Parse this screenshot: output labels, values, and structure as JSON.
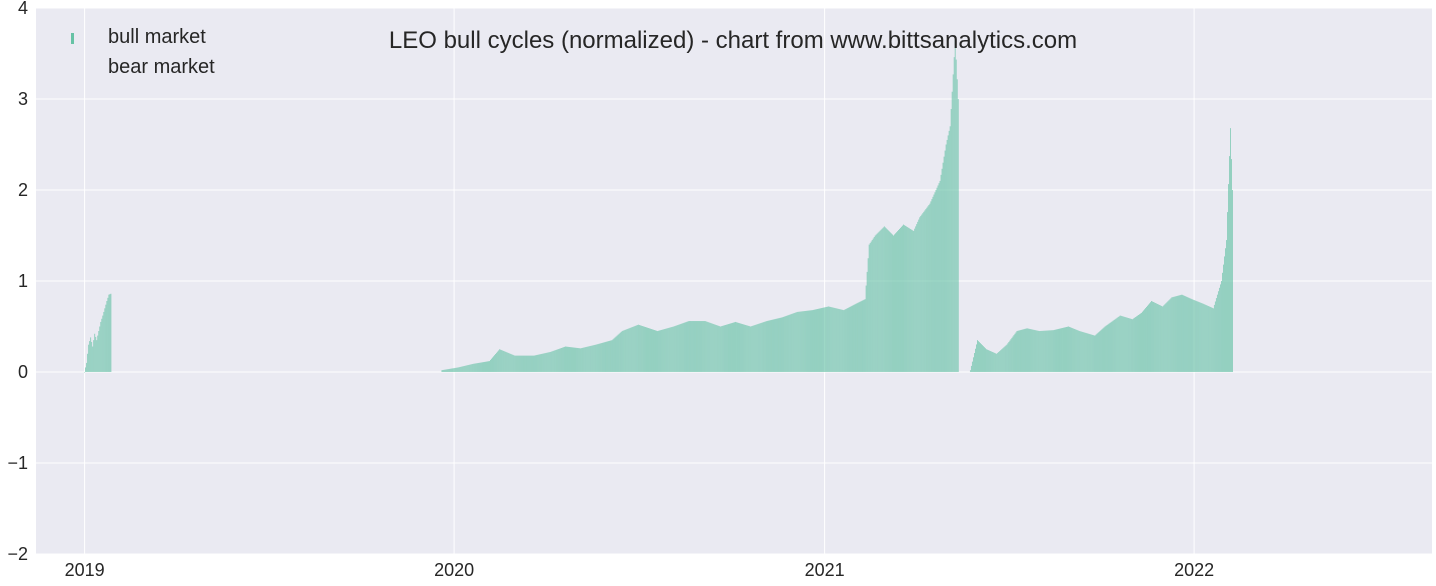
{
  "chart_data": {
    "type": "bar",
    "title": "LEO bull cycles (normalized)  - chart from www.bittsanalytics.com",
    "xlabel": "",
    "ylabel": "",
    "xlim": [
      "2018-11-14",
      "2022-08-24"
    ],
    "ylim": [
      -2,
      4
    ],
    "grid": true,
    "legend_position": "top-left",
    "y_ticks": [
      -2,
      -1,
      0,
      1,
      2,
      3,
      4
    ],
    "y_tick_labels": [
      "−2",
      "−1",
      "0",
      "1",
      "2",
      "3",
      "4"
    ],
    "x_ticks": [
      "2019-01-01",
      "2020-01-01",
      "2021-01-01",
      "2022-01-01"
    ],
    "x_tick_labels": [
      "2019",
      "2020",
      "2021",
      "2022"
    ],
    "colors": {
      "bull": "#66c2a5",
      "bear": "#fc8d62",
      "background": "#eaeaf2",
      "grid": "#ffffff"
    },
    "series": [
      {
        "name": "bull market",
        "color": "#66c2a5",
        "segments": [
          {
            "points": [
              [
                "2019-01-01",
                0.0
              ],
              [
                "2019-01-03",
                0.1
              ],
              [
                "2019-01-05",
                0.3
              ],
              [
                "2019-01-07",
                0.38
              ],
              [
                "2019-01-09",
                0.28
              ],
              [
                "2019-01-11",
                0.42
              ],
              [
                "2019-01-13",
                0.35
              ],
              [
                "2019-01-15",
                0.45
              ],
              [
                "2019-01-17",
                0.55
              ],
              [
                "2019-01-19",
                0.62
              ],
              [
                "2019-01-21",
                0.7
              ],
              [
                "2019-01-23",
                0.78
              ],
              [
                "2019-01-25",
                0.85
              ],
              [
                "2019-01-27",
                0.86
              ]
            ]
          },
          {
            "points": [
              [
                "2019-12-20",
                0.02
              ],
              [
                "2020-01-05",
                0.05
              ],
              [
                "2020-01-20",
                0.09
              ],
              [
                "2020-02-05",
                0.12
              ],
              [
                "2020-02-15",
                0.25
              ],
              [
                "2020-03-01",
                0.18
              ],
              [
                "2020-03-20",
                0.18
              ],
              [
                "2020-04-05",
                0.22
              ],
              [
                "2020-04-20",
                0.28
              ],
              [
                "2020-05-05",
                0.26
              ],
              [
                "2020-05-20",
                0.3
              ],
              [
                "2020-06-05",
                0.35
              ],
              [
                "2020-06-15",
                0.45
              ],
              [
                "2020-07-01",
                0.52
              ],
              [
                "2020-07-20",
                0.45
              ],
              [
                "2020-08-05",
                0.5
              ],
              [
                "2020-08-20",
                0.56
              ],
              [
                "2020-09-05",
                0.56
              ],
              [
                "2020-09-20",
                0.5
              ],
              [
                "2020-10-05",
                0.55
              ],
              [
                "2020-10-20",
                0.5
              ],
              [
                "2020-11-05",
                0.56
              ],
              [
                "2020-11-20",
                0.6
              ],
              [
                "2020-12-05",
                0.66
              ],
              [
                "2020-12-20",
                0.68
              ],
              [
                "2021-01-05",
                0.72
              ],
              [
                "2021-01-20",
                0.68
              ],
              [
                "2021-02-01",
                0.75
              ],
              [
                "2021-02-10",
                0.8
              ],
              [
                "2021-02-14",
                1.4
              ],
              [
                "2021-02-20",
                1.5
              ],
              [
                "2021-03-01",
                1.6
              ],
              [
                "2021-03-10",
                1.5
              ],
              [
                "2021-03-20",
                1.62
              ],
              [
                "2021-03-30",
                1.55
              ],
              [
                "2021-04-05",
                1.7
              ],
              [
                "2021-04-15",
                1.85
              ],
              [
                "2021-04-25",
                2.1
              ],
              [
                "2021-05-01",
                2.5
              ],
              [
                "2021-05-05",
                2.7
              ],
              [
                "2021-05-10",
                3.65
              ],
              [
                "2021-05-13",
                3.0
              ]
            ]
          },
          {
            "points": [
              [
                "2021-05-25",
                0.02
              ],
              [
                "2021-06-01",
                0.35
              ],
              [
                "2021-06-10",
                0.25
              ],
              [
                "2021-06-20",
                0.2
              ],
              [
                "2021-06-30",
                0.3
              ],
              [
                "2021-07-10",
                0.45
              ],
              [
                "2021-07-20",
                0.48
              ],
              [
                "2021-08-01",
                0.45
              ],
              [
                "2021-08-15",
                0.46
              ],
              [
                "2021-08-30",
                0.5
              ],
              [
                "2021-09-10",
                0.45
              ],
              [
                "2021-09-25",
                0.4
              ],
              [
                "2021-10-05",
                0.5
              ],
              [
                "2021-10-20",
                0.62
              ],
              [
                "2021-11-01",
                0.58
              ],
              [
                "2021-11-10",
                0.65
              ],
              [
                "2021-11-20",
                0.78
              ],
              [
                "2021-12-01",
                0.72
              ],
              [
                "2021-12-10",
                0.82
              ],
              [
                "2021-12-20",
                0.85
              ],
              [
                "2021-12-30",
                0.8
              ],
              [
                "2022-01-10",
                0.75
              ],
              [
                "2022-01-20",
                0.7
              ],
              [
                "2022-01-28",
                1.0
              ],
              [
                "2022-02-02",
                1.45
              ],
              [
                "2022-02-06",
                2.68
              ],
              [
                "2022-02-08",
                2.0
              ]
            ]
          }
        ]
      },
      {
        "name": "bear market",
        "color": "#fc8d62",
        "segments": []
      }
    ]
  }
}
